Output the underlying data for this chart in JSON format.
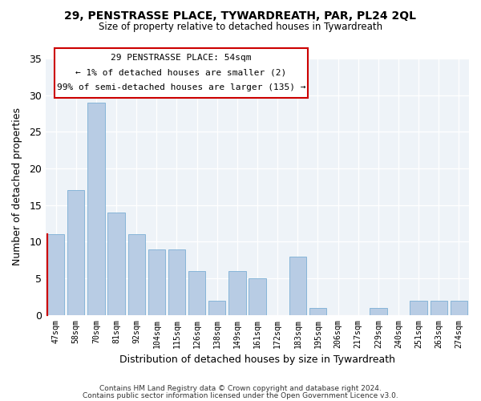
{
  "title": "29, PENSTRASSE PLACE, TYWARDREATH, PAR, PL24 2QL",
  "subtitle": "Size of property relative to detached houses in Tywardreath",
  "xlabel": "Distribution of detached houses by size in Tywardreath",
  "ylabel": "Number of detached properties",
  "categories": [
    "47sqm",
    "58sqm",
    "70sqm",
    "81sqm",
    "92sqm",
    "104sqm",
    "115sqm",
    "126sqm",
    "138sqm",
    "149sqm",
    "161sqm",
    "172sqm",
    "183sqm",
    "195sqm",
    "206sqm",
    "217sqm",
    "229sqm",
    "240sqm",
    "251sqm",
    "263sqm",
    "274sqm"
  ],
  "values": [
    11,
    17,
    29,
    14,
    11,
    9,
    9,
    6,
    2,
    6,
    5,
    0,
    8,
    1,
    0,
    0,
    1,
    0,
    2,
    2,
    2
  ],
  "bar_color": "#b8cce4",
  "bar_edgecolor": "#7bafd4",
  "highlight_bar_color": "#cc0000",
  "ylim": [
    0,
    35
  ],
  "yticks": [
    0,
    5,
    10,
    15,
    20,
    25,
    30,
    35
  ],
  "annotation_title": "29 PENSTRASSE PLACE: 54sqm",
  "annotation_line1": "← 1% of detached houses are smaller (2)",
  "annotation_line2": "99% of semi-detached houses are larger (135) →",
  "ann_box_color": "#cc0000",
  "footer1": "Contains HM Land Registry data © Crown copyright and database right 2024.",
  "footer2": "Contains public sector information licensed under the Open Government Licence v3.0.",
  "bg_color": "#eef3f8",
  "plot_bg_color": "#eef3f8"
}
